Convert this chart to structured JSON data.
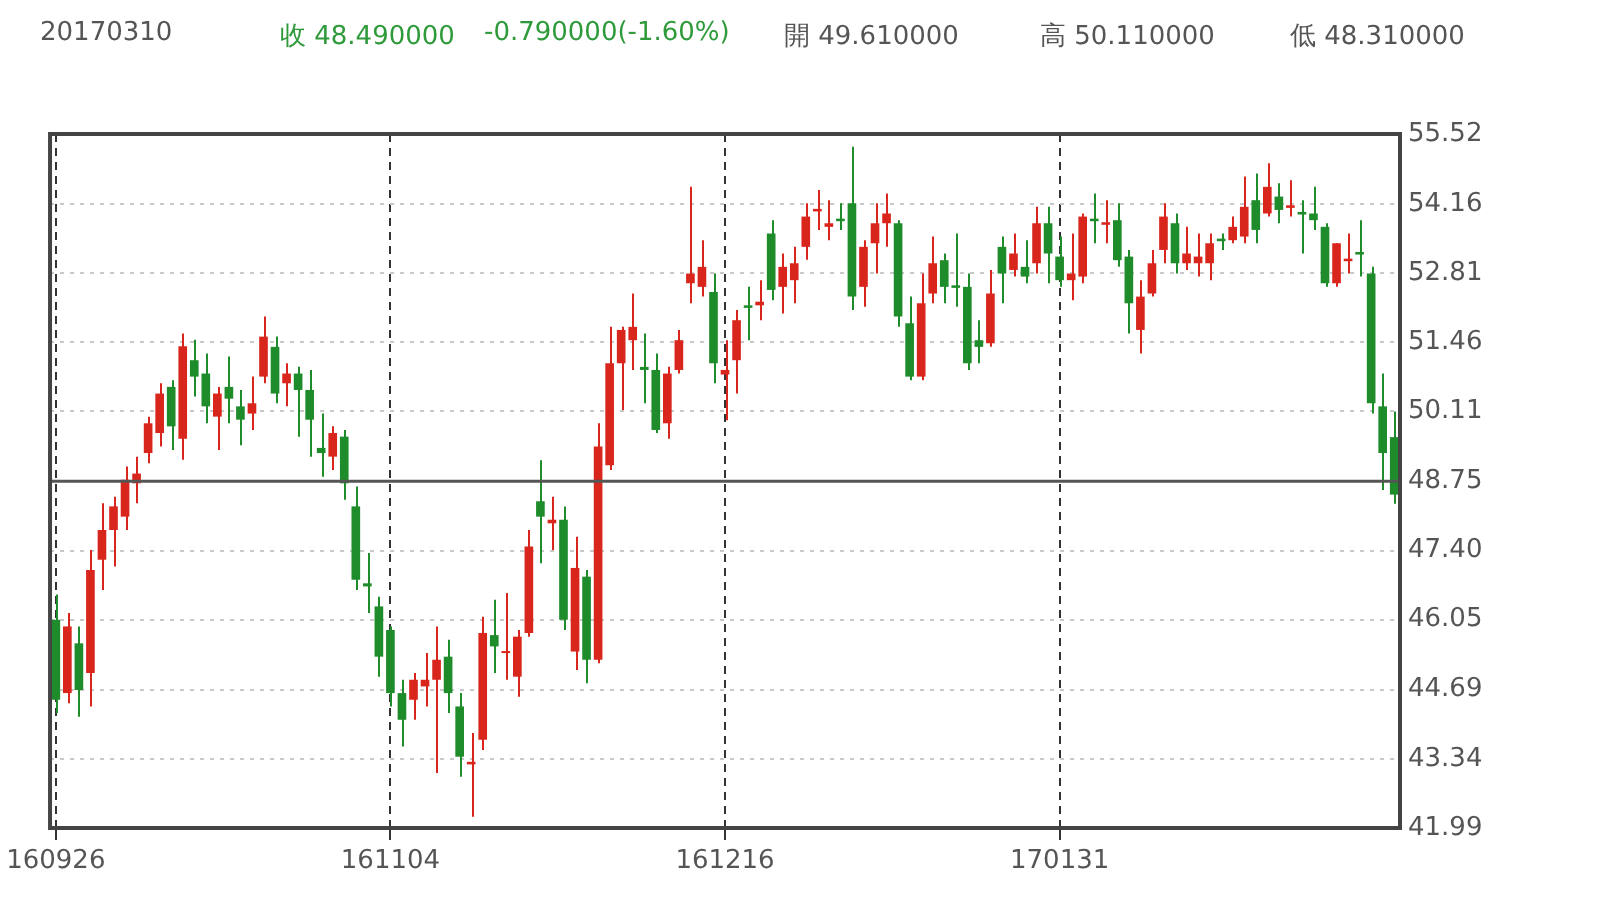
{
  "chart_data": {
    "type": "candlestick",
    "title": "20170310",
    "annotations": [
      "收 48.490000",
      "-0.790000(-1.60%)",
      "開 49.610000",
      "高 50.110000",
      "低 48.310000"
    ],
    "categories": [
      "160926",
      null,
      null,
      null,
      null,
      null,
      null,
      null,
      null,
      null,
      null,
      null,
      null,
      null,
      null,
      null,
      null,
      null,
      null,
      null,
      null,
      null,
      null,
      null,
      null,
      null,
      null,
      null,
      null,
      "161104",
      null,
      null,
      null,
      null,
      null,
      null,
      null,
      null,
      null,
      null,
      null,
      null,
      null,
      null,
      null,
      null,
      null,
      null,
      null,
      null,
      null,
      null,
      null,
      null,
      null,
      null,
      null,
      null,
      "161216",
      null,
      null,
      null,
      null,
      null,
      null,
      null,
      null,
      null,
      null,
      null,
      null,
      null,
      null,
      null,
      null,
      null,
      null,
      null,
      null,
      null,
      null,
      null,
      null,
      null,
      null,
      null,
      null,
      "170131",
      null,
      null,
      null,
      null,
      null,
      null,
      null,
      null,
      null,
      null,
      null,
      null,
      null,
      null,
      null,
      null,
      null,
      null,
      null,
      null,
      null,
      null,
      null,
      null,
      null,
      null,
      null,
      null,
      null
    ],
    "ohlc": [
      [
        46.05,
        46.54,
        44.23,
        44.49
      ],
      [
        44.62,
        46.18,
        44.42,
        45.92
      ],
      [
        45.59,
        45.92,
        44.16,
        44.68
      ],
      [
        45.01,
        47.41,
        44.36,
        47.02
      ],
      [
        47.22,
        48.32,
        46.63,
        47.8
      ],
      [
        47.8,
        48.45,
        47.09,
        48.26
      ],
      [
        48.06,
        49.04,
        47.8,
        48.78
      ],
      [
        48.71,
        49.23,
        48.32,
        48.9
      ],
      [
        49.3,
        50.01,
        49.1,
        49.88
      ],
      [
        49.69,
        50.66,
        49.43,
        50.46
      ],
      [
        50.59,
        50.72,
        49.36,
        49.82
      ],
      [
        49.58,
        51.63,
        49.17,
        51.38
      ],
      [
        51.11,
        51.51,
        50.4,
        50.79
      ],
      [
        50.85,
        51.24,
        49.88,
        50.21
      ],
      [
        50.01,
        50.59,
        49.36,
        50.46
      ],
      [
        50.59,
        51.18,
        49.88,
        50.36
      ],
      [
        50.21,
        50.53,
        49.45,
        49.95
      ],
      [
        50.07,
        50.79,
        49.75,
        50.27
      ],
      [
        50.79,
        51.96,
        50.66,
        51.57
      ],
      [
        51.37,
        51.57,
        50.27,
        50.46
      ],
      [
        50.66,
        51.05,
        50.21,
        50.85
      ],
      [
        50.85,
        50.98,
        49.62,
        50.53
      ],
      [
        50.53,
        50.92,
        49.23,
        49.95
      ],
      [
        49.4,
        50.07,
        48.84,
        49.3
      ],
      [
        49.23,
        49.82,
        48.97,
        49.69
      ],
      [
        49.62,
        49.75,
        48.39,
        48.71
      ],
      [
        48.26,
        48.65,
        46.63,
        46.83
      ],
      [
        46.76,
        47.35,
        46.18,
        46.7
      ],
      [
        46.31,
        46.5,
        44.94,
        45.33
      ],
      [
        45.85,
        45.92,
        44.36,
        44.62
      ],
      [
        44.62,
        44.88,
        43.58,
        44.1
      ],
      [
        44.49,
        45.01,
        44.1,
        44.88
      ],
      [
        44.75,
        45.4,
        44.36,
        44.88
      ],
      [
        44.88,
        45.92,
        43.06,
        45.27
      ],
      [
        45.33,
        45.66,
        44.23,
        44.62
      ],
      [
        44.36,
        44.62,
        42.99,
        43.38
      ],
      [
        43.23,
        43.84,
        42.21,
        43.28
      ],
      [
        43.71,
        46.11,
        43.51,
        45.79
      ],
      [
        45.75,
        46.44,
        45.01,
        45.53
      ],
      [
        45.4,
        46.57,
        44.88,
        45.4
      ],
      [
        44.94,
        45.85,
        44.55,
        45.72
      ],
      [
        45.79,
        47.8,
        45.72,
        47.48
      ],
      [
        48.36,
        49.16,
        47.15,
        48.06
      ],
      [
        47.93,
        48.45,
        47.41,
        48.0
      ],
      [
        48.0,
        48.26,
        45.85,
        46.05
      ],
      [
        45.43,
        47.67,
        45.07,
        47.06
      ],
      [
        46.89,
        47.02,
        44.81,
        45.27
      ],
      [
        45.27,
        49.88,
        45.2,
        49.43
      ],
      [
        49.06,
        51.76,
        48.97,
        51.05
      ],
      [
        51.05,
        51.76,
        50.14,
        51.7
      ],
      [
        51.5,
        52.41,
        50.92,
        51.76
      ],
      [
        50.98,
        51.63,
        50.27,
        50.92
      ],
      [
        50.92,
        51.24,
        49.69,
        49.75
      ],
      [
        49.88,
        50.98,
        49.58,
        50.85
      ],
      [
        50.92,
        51.7,
        50.85,
        51.5
      ],
      [
        52.61,
        54.49,
        52.22,
        52.8
      ],
      [
        52.54,
        53.45,
        52.35,
        52.93
      ],
      [
        52.44,
        52.8,
        50.66,
        51.05
      ],
      [
        50.83,
        51.5,
        49.94,
        50.92
      ],
      [
        51.11,
        52.09,
        50.46,
        51.89
      ],
      [
        52.18,
        52.54,
        51.5,
        52.13
      ],
      [
        52.18,
        52.67,
        51.89,
        52.25
      ],
      [
        53.58,
        53.84,
        52.28,
        52.48
      ],
      [
        52.54,
        53.19,
        52.02,
        52.93
      ],
      [
        52.67,
        53.32,
        52.22,
        53.0
      ],
      [
        53.32,
        54.17,
        53.07,
        53.91
      ],
      [
        54.01,
        54.43,
        53.65,
        54.06
      ],
      [
        53.71,
        54.23,
        53.45,
        53.78
      ],
      [
        53.87,
        54.17,
        53.65,
        53.82
      ],
      [
        54.17,
        55.27,
        52.09,
        52.35
      ],
      [
        52.54,
        53.45,
        52.15,
        53.32
      ],
      [
        53.39,
        54.17,
        52.8,
        53.78
      ],
      [
        53.78,
        54.36,
        53.32,
        53.97
      ],
      [
        53.78,
        53.84,
        51.76,
        51.96
      ],
      [
        51.83,
        52.35,
        50.72,
        50.79
      ],
      [
        50.79,
        52.8,
        50.72,
        52.22
      ],
      [
        52.41,
        53.52,
        52.22,
        53.0
      ],
      [
        53.06,
        53.19,
        52.22,
        52.54
      ],
      [
        52.57,
        53.58,
        52.15,
        52.52
      ],
      [
        52.54,
        52.8,
        50.92,
        51.05
      ],
      [
        51.5,
        51.89,
        51.05,
        51.37
      ],
      [
        51.44,
        52.87,
        51.37,
        52.41
      ],
      [
        53.32,
        53.52,
        52.22,
        52.8
      ],
      [
        52.87,
        53.58,
        52.74,
        53.19
      ],
      [
        52.93,
        53.45,
        52.61,
        52.74
      ],
      [
        53.0,
        54.1,
        52.8,
        53.78
      ],
      [
        53.78,
        54.1,
        52.61,
        53.19
      ],
      [
        53.13,
        53.52,
        52.54,
        52.67
      ],
      [
        52.67,
        53.58,
        52.28,
        52.8
      ],
      [
        52.74,
        53.97,
        52.61,
        53.91
      ],
      [
        53.87,
        54.36,
        53.39,
        53.82
      ],
      [
        53.75,
        54.23,
        53.39,
        53.8
      ],
      [
        53.84,
        54.17,
        52.93,
        53.06
      ],
      [
        53.13,
        53.26,
        51.63,
        52.22
      ],
      [
        51.7,
        52.67,
        51.24,
        52.35
      ],
      [
        52.41,
        53.26,
        52.35,
        53.0
      ],
      [
        53.26,
        54.17,
        53.0,
        53.91
      ],
      [
        53.78,
        53.97,
        52.8,
        53.0
      ],
      [
        53.0,
        53.71,
        52.87,
        53.19
      ],
      [
        53.0,
        53.58,
        52.74,
        53.13
      ],
      [
        53.0,
        53.58,
        52.67,
        53.39
      ],
      [
        53.48,
        53.58,
        53.26,
        53.43
      ],
      [
        53.45,
        53.91,
        53.39,
        53.71
      ],
      [
        53.52,
        54.69,
        53.39,
        54.1
      ],
      [
        54.23,
        54.75,
        53.39,
        53.65
      ],
      [
        53.97,
        54.95,
        53.91,
        54.49
      ],
      [
        54.3,
        54.56,
        53.78,
        54.04
      ],
      [
        54.08,
        54.62,
        53.91,
        54.13
      ],
      [
        54.0,
        54.23,
        53.19,
        53.95
      ],
      [
        53.97,
        54.49,
        53.65,
        53.84
      ],
      [
        53.71,
        53.78,
        52.54,
        52.61
      ],
      [
        52.61,
        53.39,
        52.54,
        53.39
      ],
      [
        53.04,
        53.58,
        52.8,
        53.09
      ],
      [
        53.22,
        53.84,
        52.74,
        53.17
      ],
      [
        52.8,
        52.93,
        50.07,
        50.27
      ],
      [
        50.21,
        50.85,
        48.58,
        49.3
      ],
      [
        49.61,
        50.11,
        48.31,
        48.49
      ]
    ],
    "colors": [
      "#1e8c2a",
      "#d9261c",
      "#1e8c2a",
      "#d9261c",
      "#d9261c",
      "#d9261c",
      "#d9261c",
      "#d9261c",
      "#d9261c",
      "#d9261c",
      "#1e8c2a",
      "#d9261c",
      "#1e8c2a",
      "#1e8c2a",
      "#d9261c",
      "#1e8c2a",
      "#1e8c2a",
      "#d9261c",
      "#d9261c",
      "#1e8c2a",
      "#d9261c",
      "#1e8c2a",
      "#1e8c2a",
      "#1e8c2a",
      "#d9261c",
      "#1e8c2a",
      "#1e8c2a",
      "#1e8c2a",
      "#1e8c2a",
      "#1e8c2a",
      "#1e8c2a",
      "#d9261c",
      "#d9261c",
      "#d9261c",
      "#1e8c2a",
      "#1e8c2a",
      "#d9261c",
      "#d9261c",
      "#1e8c2a",
      "#d9261c",
      "#d9261c",
      "#d9261c",
      "#1e8c2a",
      "#d9261c",
      "#1e8c2a",
      "#d9261c",
      "#1e8c2a",
      "#d9261c",
      "#d9261c",
      "#d9261c",
      "#d9261c",
      "#1e8c2a",
      "#1e8c2a",
      "#d9261c",
      "#d9261c",
      "#d9261c",
      "#d9261c",
      "#1e8c2a",
      "#d9261c",
      "#d9261c",
      "#1e8c2a",
      "#d9261c",
      "#1e8c2a",
      "#d9261c",
      "#d9261c",
      "#d9261c",
      "#d9261c",
      "#d9261c",
      "#1e8c2a",
      "#1e8c2a",
      "#d9261c",
      "#d9261c",
      "#d9261c",
      "#1e8c2a",
      "#1e8c2a",
      "#d9261c",
      "#d9261c",
      "#1e8c2a",
      "#1e8c2a",
      "#1e8c2a",
      "#1e8c2a",
      "#d9261c",
      "#1e8c2a",
      "#d9261c",
      "#1e8c2a",
      "#d9261c",
      "#1e8c2a",
      "#1e8c2a",
      "#d9261c",
      "#d9261c",
      "#1e8c2a",
      "#d9261c",
      "#1e8c2a",
      "#1e8c2a",
      "#d9261c",
      "#d9261c",
      "#d9261c",
      "#1e8c2a",
      "#d9261c",
      "#d9261c",
      "#d9261c",
      "#1e8c2a",
      "#d9261c",
      "#d9261c",
      "#1e8c2a",
      "#d9261c",
      "#1e8c2a",
      "#d9261c",
      "#1e8c2a",
      "#1e8c2a",
      "#1e8c2a",
      "#d9261c",
      "#d9261c",
      "#1e8c2a",
      "#1e8c2a",
      "#1e8c2a",
      "#1e8c2a"
    ],
    "ylim": [
      41.99,
      55.52
    ],
    "yticks": [
      {
        "value": 41.99,
        "label": "41.99"
      },
      {
        "value": 43.34,
        "label": "43.34"
      },
      {
        "value": 44.69,
        "label": "44.69"
      },
      {
        "value": 46.05,
        "label": "46.05"
      },
      {
        "value": 47.4,
        "label": "47.40"
      },
      {
        "value": 48.75,
        "label": "48.75"
      },
      {
        "value": 50.11,
        "label": "50.11"
      },
      {
        "value": 51.46,
        "label": "51.46"
      },
      {
        "value": 52.81,
        "label": "52.81"
      },
      {
        "value": 54.16,
        "label": "54.16"
      },
      {
        "value": 55.52,
        "label": "55.52"
      }
    ],
    "ref_lines": [
      {
        "axis": "y",
        "value": 48.75,
        "color": "#555555",
        "line_style": "solid"
      }
    ],
    "grid": true,
    "legend": false
  }
}
